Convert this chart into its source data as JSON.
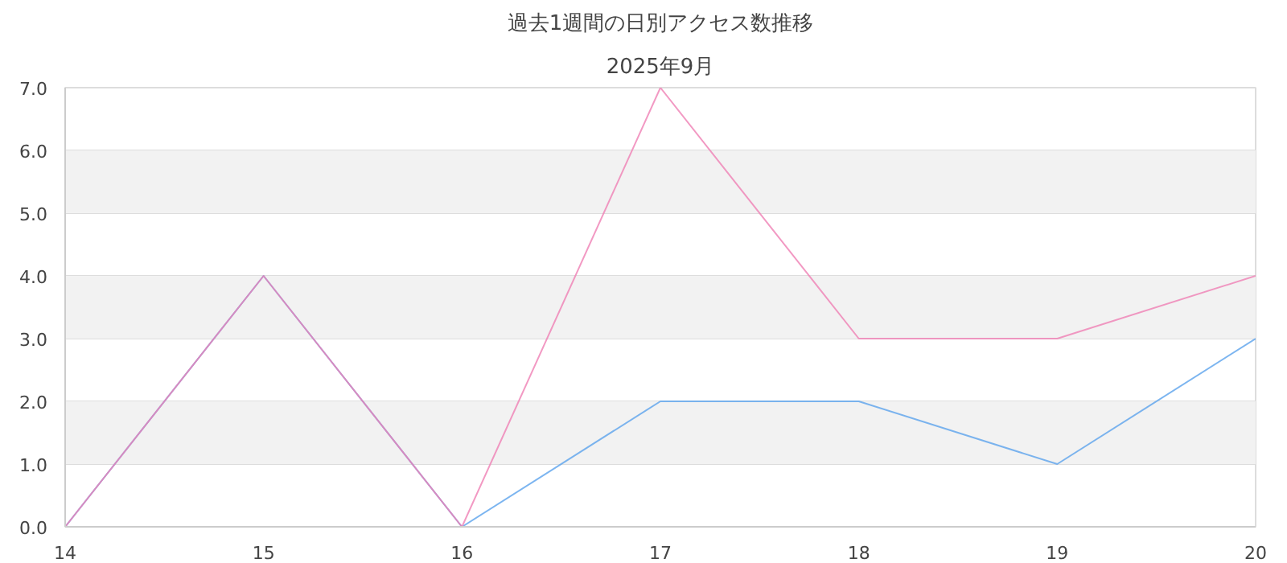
{
  "chart_data": {
    "type": "line",
    "title": "過去1週間の日別アクセス数推移",
    "subtitle": "2025年9月",
    "x": [
      14,
      15,
      16,
      17,
      18,
      19,
      20
    ],
    "series": [
      {
        "color": "#5ba3ec",
        "values": [
          0,
          4,
          0,
          2,
          2,
          1,
          3
        ]
      },
      {
        "color": "#ef7fb4",
        "values": [
          0,
          4,
          0,
          7,
          3,
          3,
          4
        ]
      }
    ],
    "xlim": [
      14,
      20
    ],
    "xticks": [
      14,
      15,
      16,
      17,
      18,
      19,
      20
    ],
    "ylim": [
      0,
      7
    ],
    "yticks": [
      {
        "value": 0,
        "label": "0.0"
      },
      {
        "value": 1,
        "label": "1.0"
      },
      {
        "value": 2,
        "label": "2.0"
      },
      {
        "value": 3,
        "label": "3.0"
      },
      {
        "value": 4,
        "label": "4.0"
      },
      {
        "value": 5,
        "label": "5.0"
      },
      {
        "value": 6,
        "label": "6.0"
      },
      {
        "value": 7,
        "label": "7.0"
      }
    ],
    "bands": [
      {
        "axis": "y",
        "from": 1,
        "to": 2,
        "color": "#f2f2f2"
      },
      {
        "axis": "y",
        "from": 3,
        "to": 4,
        "color": "#f2f2f2"
      },
      {
        "axis": "y",
        "from": 5,
        "to": 6,
        "color": "#f2f2f2"
      }
    ],
    "grid": "y",
    "marker": "none",
    "line_style": "solid"
  }
}
